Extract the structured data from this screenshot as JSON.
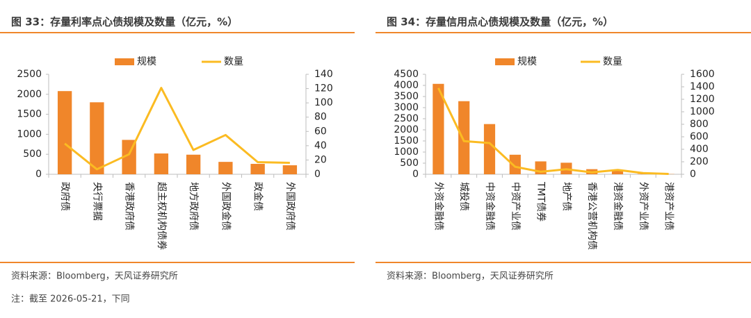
{
  "chart_data": [
    {
      "type": "bar",
      "title": "图 33：存量利率点心债规模及数量（亿元，%）",
      "categories": [
        "政府债",
        "央行票据",
        "香港政府债",
        "超主权机构债券",
        "地方政府债",
        "外国政金债",
        "政金债",
        "外国政府债"
      ],
      "series": [
        {
          "name": "规模",
          "type": "bar",
          "color": "#f0862a",
          "values": [
            2080,
            1800,
            860,
            520,
            490,
            310,
            260,
            225
          ]
        },
        {
          "name": "数量",
          "type": "line",
          "axis": "y2",
          "color": "#fbbb22",
          "values": [
            43,
            7,
            28,
            121,
            34,
            55,
            17,
            16
          ]
        }
      ],
      "ylim": [
        0,
        2500
      ],
      "yticks": [
        0,
        500,
        1000,
        1500,
        2000,
        2500
      ],
      "y2lim": [
        0,
        140
      ],
      "y2ticks": [
        0,
        20,
        40,
        60,
        80,
        100,
        120,
        140
      ],
      "source": "资料来源：Bloomberg，天风证券研究所"
    },
    {
      "type": "bar",
      "title": "图 34：存量信用点心债规模及数量（亿元，%）",
      "categories": [
        "外资金融债",
        "城投债",
        "中资金融债",
        "中资产业债",
        "TMT债券",
        "地产债",
        "香港公营机构债",
        "港资金融债",
        "外资产业债",
        "港资产业债"
      ],
      "series": [
        {
          "name": "规模",
          "type": "bar",
          "color": "#f0862a",
          "values": [
            4070,
            3290,
            2260,
            880,
            580,
            520,
            230,
            170,
            20,
            10
          ]
        },
        {
          "name": "数量",
          "type": "line",
          "axis": "y2",
          "color": "#fbbb22",
          "values": [
            1380,
            530,
            500,
            120,
            40,
            80,
            30,
            70,
            20,
            5
          ]
        }
      ],
      "ylim": [
        0,
        4500
      ],
      "yticks": [
        0,
        500,
        1000,
        1500,
        2000,
        2500,
        3000,
        3500,
        4000,
        4500
      ],
      "y2lim": [
        0,
        1600
      ],
      "y2ticks": [
        0,
        200,
        400,
        600,
        800,
        1000,
        1200,
        1400,
        1600
      ],
      "source": "资料来源：Bloomberg，天风证券研究所"
    }
  ],
  "note": "注：截至 2026-05-21，下同"
}
